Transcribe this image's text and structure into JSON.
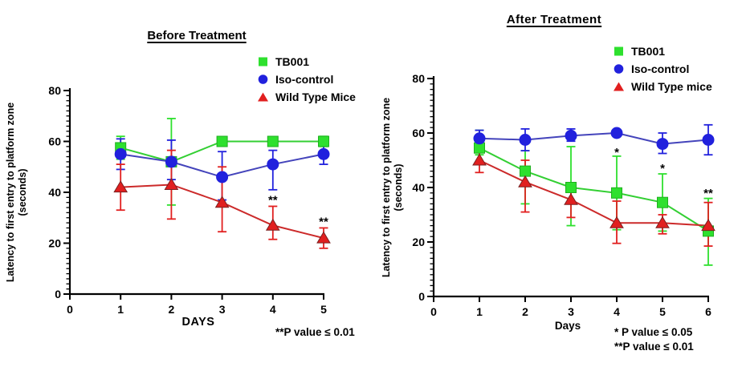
{
  "figure": {
    "background": "#ffffff",
    "text_color": "#000000"
  },
  "chart_data": [
    {
      "type": "line",
      "title": "Before Treatment",
      "xlabel": "DAYS",
      "ylabel": "Latency to first entry to platform zone (seconds)",
      "ylabel_lines": [
        "Latency to first entry to platform zone",
        "(seconds)"
      ],
      "x": [
        1,
        2,
        3,
        4,
        5
      ],
      "x_ticks": [
        0,
        1,
        2,
        3,
        4,
        5
      ],
      "xlim": [
        0,
        5
      ],
      "ylim": [
        0,
        80
      ],
      "y_major_ticks": [
        0,
        20,
        40,
        60,
        80
      ],
      "y_minor_step": 2,
      "grid": false,
      "legend_position": "top-right",
      "series": [
        {
          "name": "TB001",
          "marker": "square",
          "color": "#2ee02e",
          "line_color": "#33cf33",
          "edge_color": "#1faf1f",
          "values": [
            57.5,
            52,
            60,
            60,
            60
          ],
          "err_low": [
            53,
            35,
            60,
            60,
            58
          ],
          "err_high": [
            62,
            69,
            60,
            60,
            62
          ]
        },
        {
          "name": "Iso-control",
          "marker": "circle",
          "color": "#2121dd",
          "line_color": "#4444bb",
          "edge_color": "#2121dd",
          "values": [
            55,
            52,
            46,
            51,
            55
          ],
          "err_low": [
            49,
            45,
            37,
            41,
            51
          ],
          "err_high": [
            61,
            60.5,
            56,
            56.5,
            59
          ]
        },
        {
          "name": "Wild Type Mice",
          "marker": "triangle",
          "color": "#e11f1f",
          "line_color": "#cc2a2a",
          "edge_color": "#7a2020",
          "values": [
            42,
            43,
            36,
            27,
            22
          ],
          "err_low": [
            33,
            29.5,
            24.5,
            21.5,
            18
          ],
          "err_high": [
            51,
            56.5,
            50,
            34.5,
            26
          ]
        }
      ],
      "annotations": [
        {
          "text": "**",
          "x": 4,
          "y": 37
        },
        {
          "text": "**",
          "x": 5,
          "y": 28.5
        }
      ],
      "footnotes": [
        "**P value ≤ 0.01"
      ]
    },
    {
      "type": "line",
      "title": "After Treatment",
      "xlabel": "Days",
      "ylabel": "Latency to first entry to platform zone (seconds)",
      "ylabel_lines": [
        "Latency to first entry to platform zone",
        "(seconds)"
      ],
      "x": [
        1,
        2,
        3,
        4,
        5,
        6
      ],
      "x_ticks": [
        0,
        1,
        2,
        3,
        4,
        5,
        6
      ],
      "xlim": [
        0,
        6
      ],
      "ylim": [
        0,
        80
      ],
      "y_major_ticks": [
        0,
        20,
        40,
        60,
        80
      ],
      "y_minor_step": 2,
      "grid": false,
      "legend_position": "top-right",
      "series": [
        {
          "name": "TB001",
          "marker": "square",
          "color": "#2ee02e",
          "line_color": "#33cf33",
          "edge_color": "#1faf1f",
          "values": [
            54.5,
            46,
            40,
            38,
            34.5,
            24
          ],
          "err_low": [
            52,
            34,
            26,
            24.5,
            24,
            11.5
          ],
          "err_high": [
            61,
            53.5,
            55,
            51.5,
            45,
            36
          ]
        },
        {
          "name": "Iso-control",
          "marker": "circle",
          "color": "#2121dd",
          "line_color": "#4444bb",
          "edge_color": "#2121dd",
          "values": [
            58,
            57.5,
            59,
            60,
            56,
            57.5
          ],
          "err_low": [
            55,
            53.5,
            57,
            60,
            52.5,
            52
          ],
          "err_high": [
            61,
            61.5,
            61.5,
            60,
            60,
            63
          ]
        },
        {
          "name": "Wild Type mice",
          "marker": "triangle",
          "color": "#e11f1f",
          "line_color": "#cc2a2a",
          "edge_color": "#7a2020",
          "values": [
            50,
            42,
            35.5,
            27,
            27,
            26
          ],
          "err_low": [
            45.5,
            31,
            29,
            19.5,
            23,
            18.5
          ],
          "err_high": [
            53.5,
            50,
            41,
            35,
            30,
            34.5
          ]
        }
      ],
      "annotations": [
        {
          "text": "*",
          "x": 4,
          "y": 53
        },
        {
          "text": "*",
          "x": 5,
          "y": 47
        },
        {
          "text": "**",
          "x": 6,
          "y": 38
        }
      ],
      "footnotes": [
        "* P value ≤ 0.05",
        "**P value ≤ 0.01"
      ]
    }
  ]
}
